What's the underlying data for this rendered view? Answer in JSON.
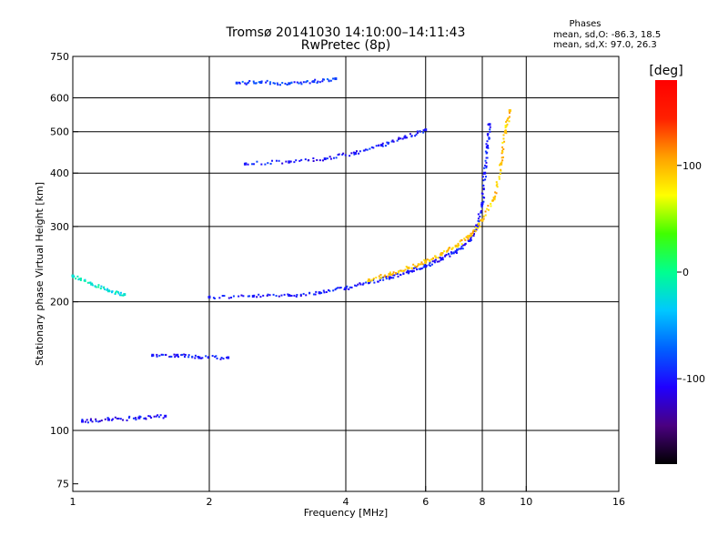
{
  "chart_data": {
    "type": "scatter",
    "title": "Tromsø 20141030 14:10:00–14:11:43",
    "subtitle": "RwPretec (8p)",
    "xlabel": "Frequency [MHz]",
    "ylabel": "Stationary phase Virtual Height [km]",
    "x_scale": "log",
    "y_scale": "log",
    "xlim": [
      1,
      16
    ],
    "ylim": [
      72,
      750
    ],
    "x_ticks": [
      1,
      2,
      4,
      6,
      8,
      10,
      16
    ],
    "y_ticks": [
      75,
      100,
      200,
      300,
      400,
      500,
      600,
      750
    ],
    "grid": true,
    "legend": {
      "title": "Phases",
      "lines": [
        "mean, sd,O: -86.3, 18.5",
        "mean, sd,X:  97.0, 26.3"
      ],
      "position": "top-right"
    },
    "colorbar": {
      "label": "[deg]",
      "range": [
        -180,
        180
      ],
      "ticks": [
        100,
        0,
        -100
      ],
      "colormap": [
        "#000000",
        "#4a0080",
        "#2000ff",
        "#0060ff",
        "#00c8ff",
        "#00ff90",
        "#40ff00",
        "#ffff00",
        "#ffa000",
        "#ff2000",
        "#ff0000"
      ]
    },
    "traces": [
      {
        "name": "",
        "phase": -100,
        "points": [
          [
            2.0,
            205
          ],
          [
            2.5,
            206
          ],
          [
            3.0,
            207
          ],
          [
            3.5,
            210
          ],
          [
            4.0,
            215
          ],
          [
            4.5,
            222
          ],
          [
            5.0,
            228
          ],
          [
            5.5,
            235
          ],
          [
            6.0,
            242
          ],
          [
            6.5,
            252
          ],
          [
            7.0,
            262
          ],
          [
            7.5,
            278
          ],
          [
            7.8,
            300
          ],
          [
            8.0,
            340
          ],
          [
            8.1,
            400
          ],
          [
            8.2,
            460
          ],
          [
            8.3,
            520
          ]
        ]
      },
      {
        "name": "",
        "phase": -100,
        "points": [
          [
            2.4,
            420
          ],
          [
            3.0,
            425
          ],
          [
            3.6,
            432
          ],
          [
            4.2,
            445
          ],
          [
            4.8,
            465
          ],
          [
            5.4,
            485
          ],
          [
            6.0,
            505
          ]
        ]
      },
      {
        "name": "",
        "phase": -85,
        "points": [
          [
            2.3,
            650
          ],
          [
            2.6,
            652
          ],
          [
            3.0,
            648
          ],
          [
            3.4,
            655
          ],
          [
            3.8,
            665
          ]
        ]
      },
      {
        "name": "",
        "phase": -100,
        "points": [
          [
            1.5,
            150
          ],
          [
            1.7,
            150
          ],
          [
            1.9,
            148
          ],
          [
            2.2,
            148
          ]
        ]
      },
      {
        "name": "",
        "phase": -105,
        "points": [
          [
            1.05,
            105
          ],
          [
            1.2,
            106
          ],
          [
            1.4,
            107
          ],
          [
            1.6,
            108
          ]
        ]
      },
      {
        "name": "",
        "phase": 95,
        "points": [
          [
            4.5,
            225
          ],
          [
            5.0,
            232
          ],
          [
            5.5,
            240
          ],
          [
            6.0,
            248
          ],
          [
            6.5,
            258
          ],
          [
            7.0,
            270
          ],
          [
            7.5,
            285
          ],
          [
            8.0,
            310
          ],
          [
            8.5,
            350
          ],
          [
            8.8,
            420
          ],
          [
            9.0,
            500
          ],
          [
            9.2,
            560
          ]
        ]
      },
      {
        "name": "",
        "phase": -20,
        "points": [
          [
            1.0,
            230
          ],
          [
            1.1,
            220
          ],
          [
            1.2,
            212
          ],
          [
            1.3,
            208
          ]
        ]
      }
    ]
  }
}
